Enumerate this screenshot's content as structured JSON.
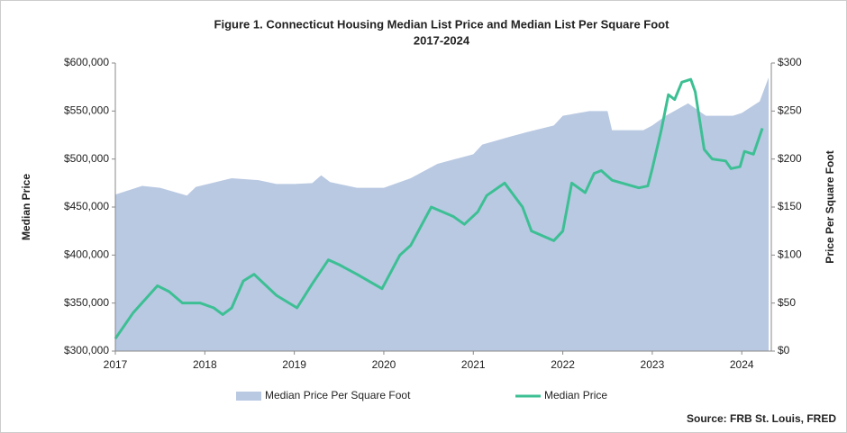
{
  "chart_data": {
    "type": "area_line",
    "title": "Figure 1. Connecticut Housing Median List Price and Median List Per Square Foot",
    "subtitle": "2017-2024",
    "y_label": "Median Price",
    "y2_label": "Price Per Square Foot",
    "source": "Source: FRB St. Louis, FRED",
    "xlim": [
      2017,
      2024.33
    ],
    "xticks": [
      2017,
      2018,
      2019,
      2020,
      2021,
      2022,
      2023,
      2024
    ],
    "ylim": [
      300000,
      600000
    ],
    "yticks": [
      {
        "value": 300000,
        "label": "$300,000"
      },
      {
        "value": 350000,
        "label": "$350,000"
      },
      {
        "value": 400000,
        "label": "$400,000"
      },
      {
        "value": 450000,
        "label": "$450,000"
      },
      {
        "value": 500000,
        "label": "$500,000"
      },
      {
        "value": 550000,
        "label": "$550,000"
      },
      {
        "value": 600000,
        "label": "$600,000"
      }
    ],
    "y2lim": [
      0,
      300
    ],
    "y2ticks": [
      {
        "value": 0,
        "label": "$0"
      },
      {
        "value": 50,
        "label": "$50"
      },
      {
        "value": 100,
        "label": "$100"
      },
      {
        "value": 150,
        "label": "$150"
      },
      {
        "value": 200,
        "label": "$200"
      },
      {
        "value": 250,
        "label": "$250"
      },
      {
        "value": 300,
        "label": "$300"
      }
    ],
    "series": [
      {
        "name": "Median Price Per Square Foot",
        "color": "#b9c9e2",
        "axis": "y2",
        "kind": "area",
        "x": [
          2017.0,
          2017.3,
          2017.5,
          2017.8,
          2017.9,
          2018.3,
          2018.6,
          2018.8,
          2019.0,
          2019.2,
          2019.3,
          2019.4,
          2019.7,
          2020.0,
          2020.3,
          2020.6,
          2020.8,
          2021.0,
          2021.1,
          2021.4,
          2021.6,
          2021.9,
          2022.0,
          2022.3,
          2022.5,
          2022.55,
          2022.9,
          2023.0,
          2023.15,
          2023.4,
          2023.6,
          2023.9,
          2024.0,
          2024.2,
          2024.3
        ],
        "values": [
          163,
          172,
          170,
          162,
          171,
          180,
          178,
          174,
          174,
          175,
          183,
          176,
          170,
          170,
          180,
          195,
          200,
          205,
          215,
          223,
          228,
          235,
          245,
          250,
          250,
          230,
          230,
          235,
          245,
          258,
          245,
          245,
          248,
          260,
          285
        ]
      },
      {
        "name": "Median Price",
        "color": "#3dbf94",
        "axis": "y",
        "kind": "line",
        "x": [
          2017.0,
          2017.2,
          2017.47,
          2017.6,
          2017.75,
          2017.95,
          2018.1,
          2018.2,
          2018.3,
          2018.43,
          2018.55,
          2018.8,
          2019.03,
          2019.2,
          2019.38,
          2019.5,
          2019.7,
          2019.98,
          2020.18,
          2020.3,
          2020.53,
          2020.78,
          2020.9,
          2021.05,
          2021.15,
          2021.35,
          2021.55,
          2021.65,
          2021.9,
          2022.0,
          2022.1,
          2022.25,
          2022.35,
          2022.43,
          2022.55,
          2022.85,
          2022.95,
          2023.0,
          2023.1,
          2023.18,
          2023.25,
          2023.33,
          2023.43,
          2023.48,
          2023.58,
          2023.67,
          2023.82,
          2023.88,
          2023.98,
          2024.03,
          2024.13,
          2024.23
        ],
        "values": [
          313,
          340,
          368,
          362,
          350,
          350,
          345,
          338,
          345,
          373,
          380,
          358,
          345,
          370,
          395,
          390,
          380,
          365,
          400,
          410,
          450,
          440,
          432,
          445,
          462,
          475,
          450,
          425,
          415,
          425,
          475,
          465,
          485,
          488,
          478,
          470,
          472,
          490,
          530,
          567,
          562,
          580,
          583,
          570,
          510,
          500,
          498,
          490,
          492,
          508,
          505,
          532
        ],
        "scale": 1000
      }
    ]
  }
}
